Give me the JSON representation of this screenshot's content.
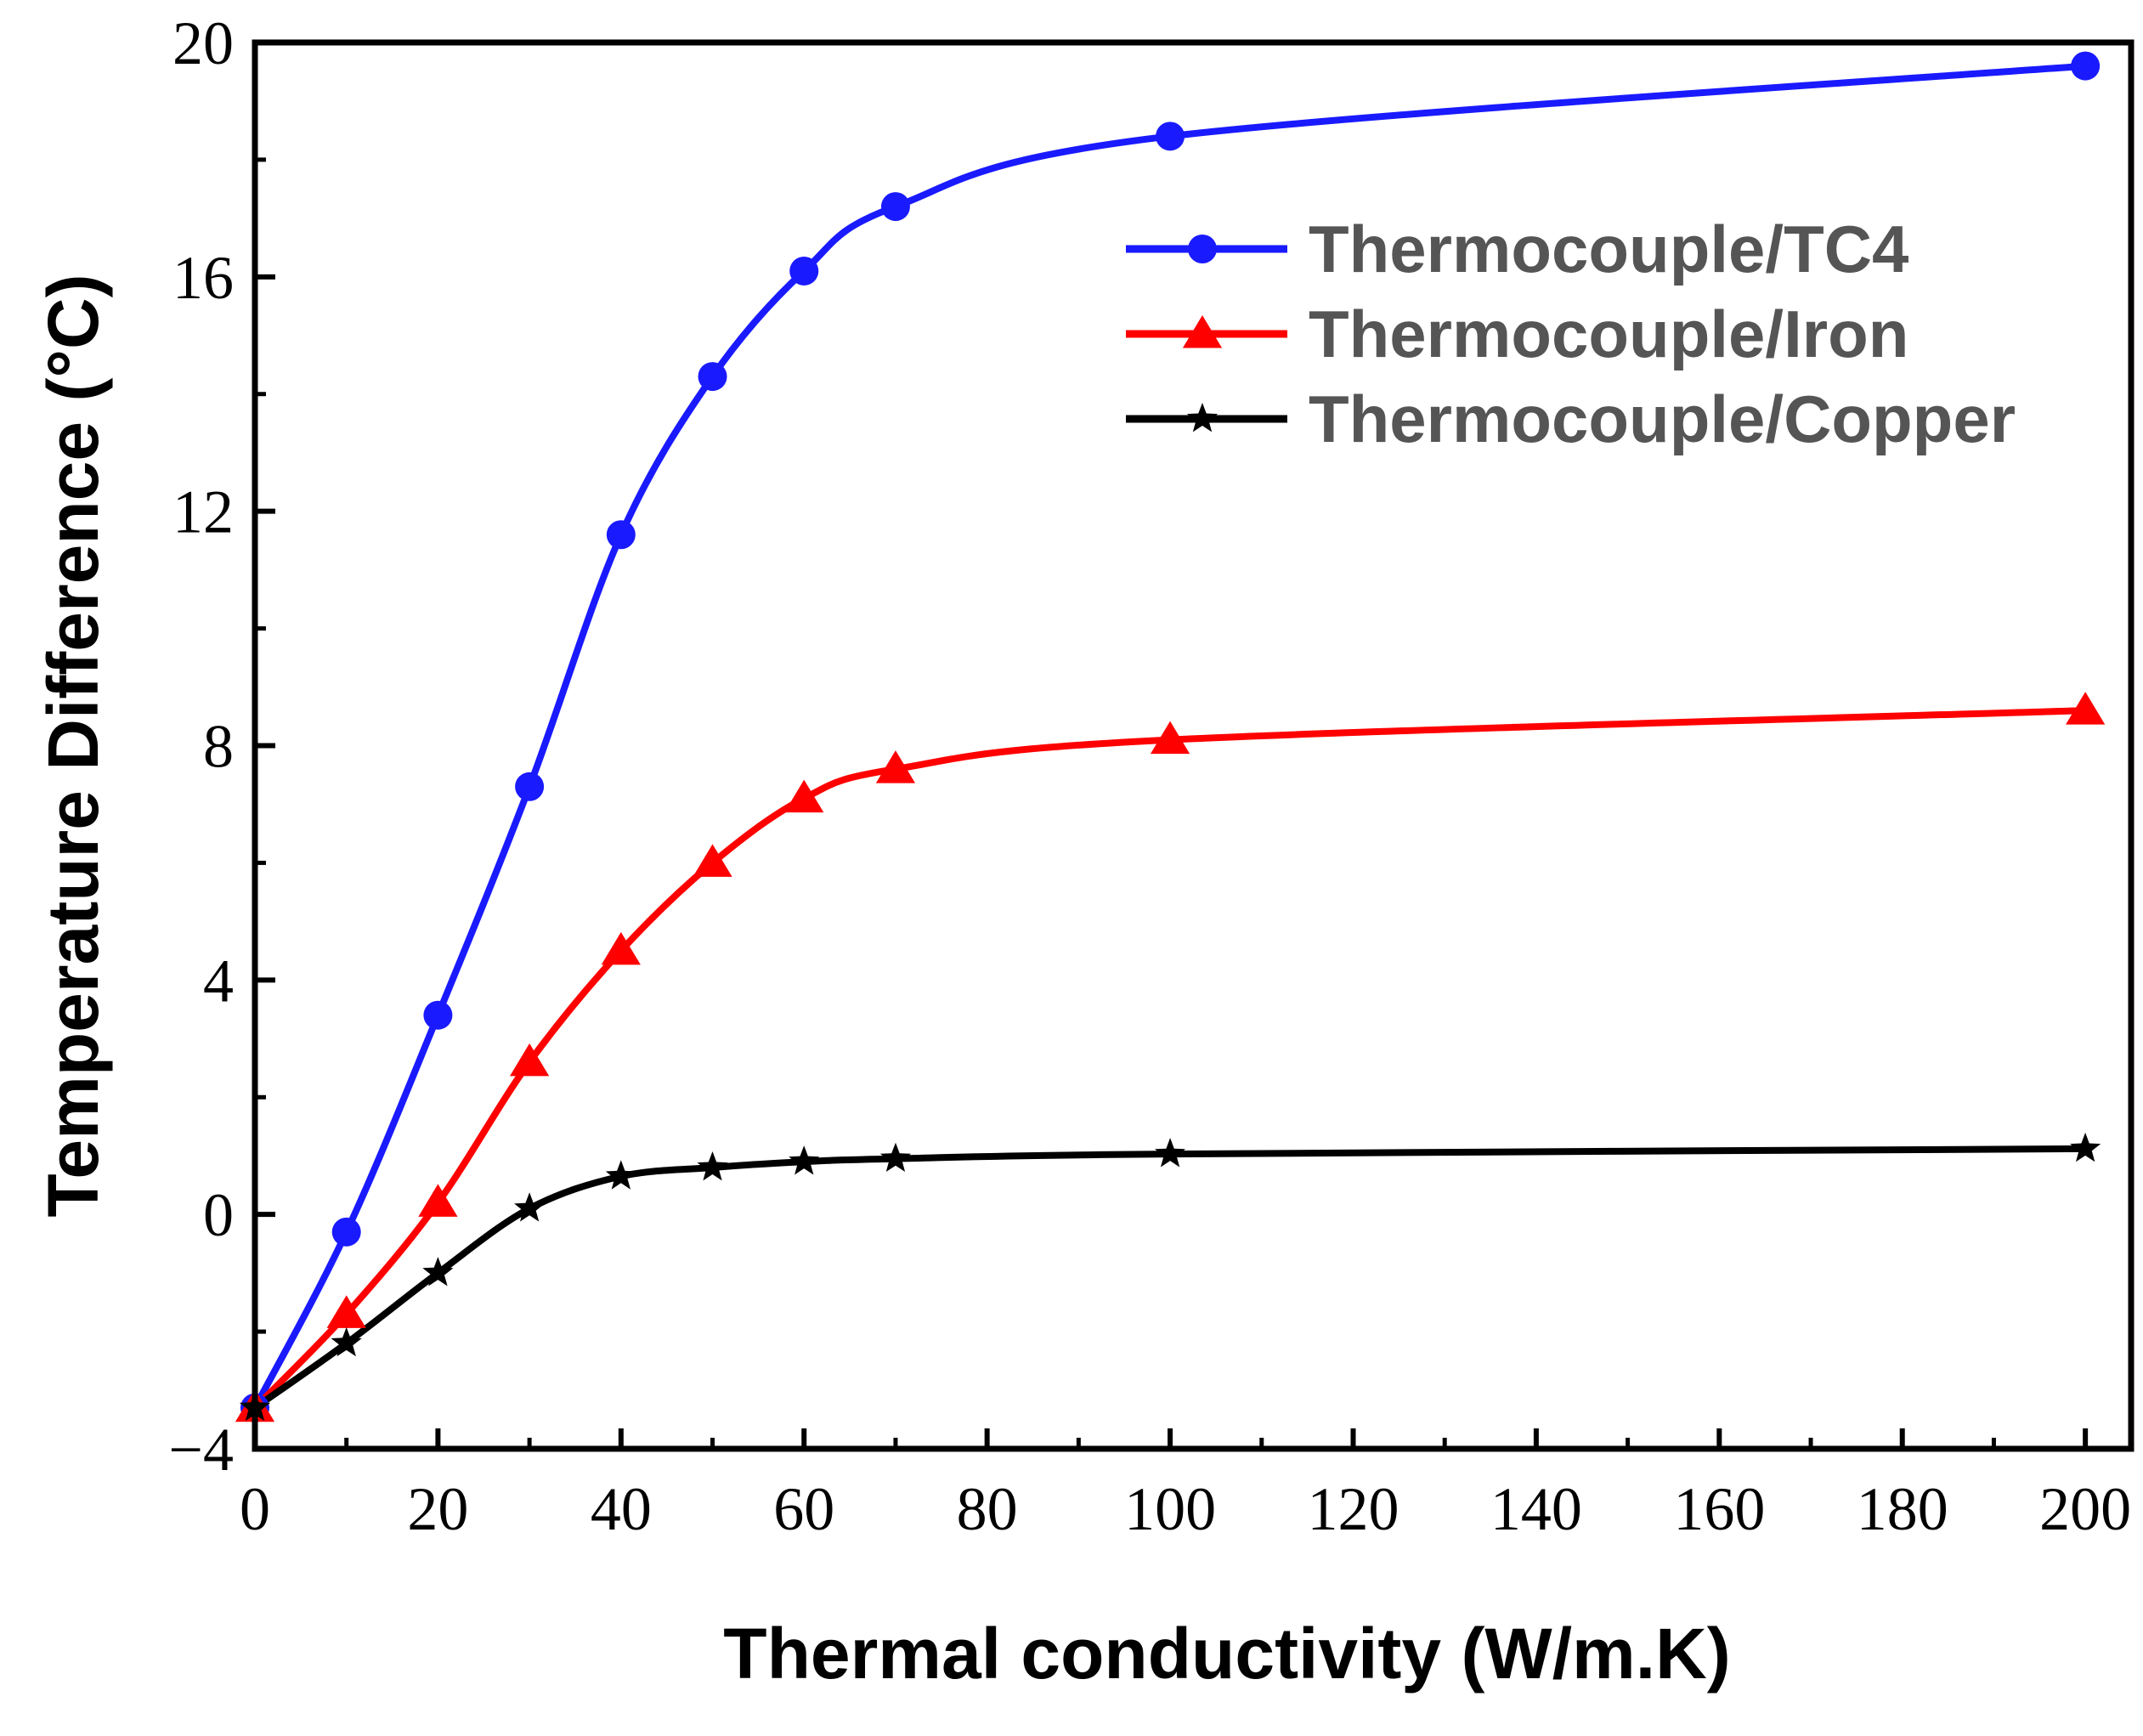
{
  "chart_data": {
    "type": "line",
    "title": "",
    "xlabel": "Thermal conductivity (W/m.K)",
    "ylabel": "Temperature Difference (°C)",
    "xlim": [
      0,
      205
    ],
    "ylim": [
      -4,
      20
    ],
    "xticks": [
      0,
      20,
      40,
      60,
      80,
      100,
      120,
      140,
      160,
      180,
      200
    ],
    "yticks": [
      -4,
      0,
      4,
      8,
      12,
      16,
      20
    ],
    "xtick_labels": [
      "0",
      "20",
      "40",
      "60",
      "80",
      "100",
      "120",
      "140",
      "160",
      "180",
      "200"
    ],
    "ytick_labels": [
      "−4",
      "0",
      "4",
      "8",
      "12",
      "16",
      "20"
    ],
    "grid": false,
    "legend_position": "top-right",
    "series": [
      {
        "name": "Thermocouple/TC4",
        "color": "#1a1aff",
        "marker": "circle",
        "x": [
          0,
          10,
          20,
          30,
          40,
          50,
          60,
          70,
          100,
          200
        ],
        "y": [
          -3.3,
          -0.3,
          3.4,
          7.3,
          11.6,
          14.3,
          16.1,
          17.2,
          18.4,
          19.6
        ]
      },
      {
        "name": "Thermocouple/Iron",
        "color": "#ff0000",
        "marker": "triangle",
        "x": [
          0,
          10,
          20,
          30,
          40,
          50,
          60,
          70,
          100,
          200
        ],
        "y": [
          -3.3,
          -1.7,
          0.2,
          2.6,
          4.5,
          6.0,
          7.1,
          7.6,
          8.1,
          8.6
        ]
      },
      {
        "name": "Thermocouple/Copper",
        "color": "#000000",
        "marker": "star",
        "x": [
          0,
          10,
          20,
          30,
          40,
          50,
          60,
          70,
          100,
          200
        ],
        "y": [
          -3.3,
          -2.2,
          -1.0,
          0.1,
          0.65,
          0.8,
          0.9,
          0.95,
          1.03,
          1.12
        ]
      }
    ]
  }
}
